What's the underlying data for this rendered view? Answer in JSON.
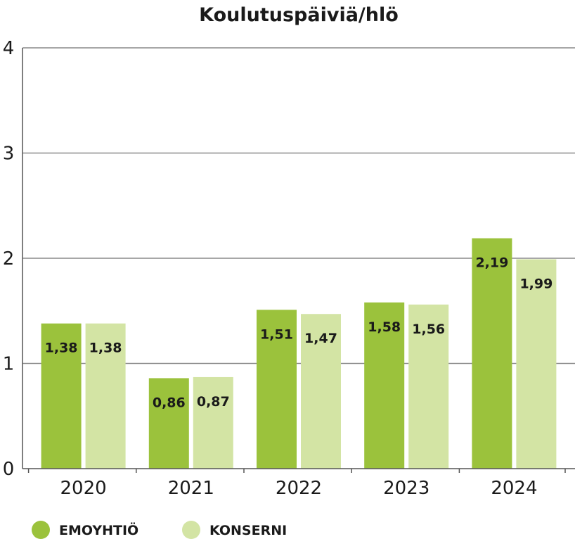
{
  "chart_data": {
    "type": "bar",
    "title": "Koulutuspäiviä/hlö",
    "xlabel": "",
    "ylabel": "",
    "categories": [
      "2020",
      "2021",
      "2022",
      "2023",
      "2024"
    ],
    "ylim": [
      0,
      4
    ],
    "yticks": [
      "0",
      "1",
      "2",
      "3",
      "4"
    ],
    "grid": true,
    "legend_position": "bottom-left",
    "series": [
      {
        "name": "EMOYHTIÖ",
        "color": "#9bc23c",
        "values": [
          1.38,
          0.86,
          1.51,
          1.58,
          2.19
        ],
        "labels": [
          "1,38",
          "0,86",
          "1,51",
          "1,58",
          "2,19"
        ]
      },
      {
        "name": "KONSERNI",
        "color": "#d3e4a4",
        "values": [
          1.38,
          0.87,
          1.47,
          1.56,
          1.99
        ],
        "labels": [
          "1,38",
          "0,87",
          "1,47",
          "1,56",
          "1,99"
        ]
      }
    ]
  }
}
